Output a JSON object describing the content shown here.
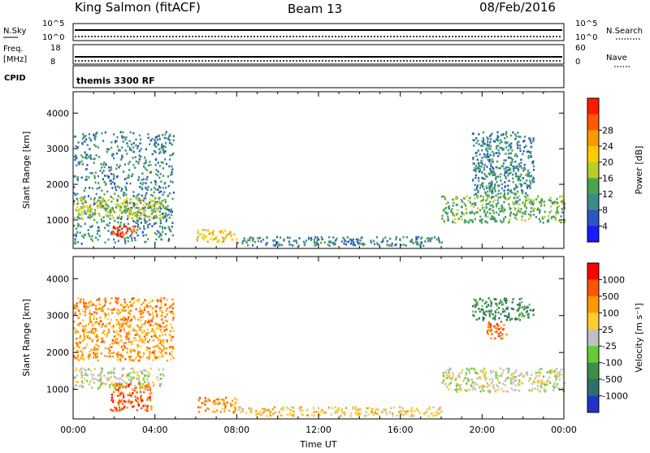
{
  "header": {
    "title": "King Salmon (fitACF)",
    "beam": "Beam 13",
    "date": "08/Feb/2016"
  },
  "strips": {
    "nsky_label": "N.Sky",
    "nsky_ticks": [
      "10^5",
      "10^0"
    ],
    "nsearch_label": "N.Search",
    "nsearch_ticks": [
      "10^5",
      "10^0"
    ],
    "freq_label_1": "Freq.",
    "freq_label_2": "[MHz]",
    "freq_ticks": [
      "18",
      "8"
    ],
    "nave_label": "Nave",
    "nave_ticks": [
      "60",
      "0"
    ],
    "cpid_label": "CPID",
    "cpid_text": "themis 3300 RF"
  },
  "chart_data": [
    {
      "type": "heatmap",
      "name": "power",
      "ylabel": "Slant Range [km]",
      "yticks": [
        1000,
        2000,
        3000,
        4000
      ],
      "ylim": [
        200,
        4600
      ],
      "xlim": [
        0,
        24
      ],
      "colorbar": {
        "label": "Power [dB]",
        "ticks": [
          "4",
          "8",
          "12",
          "16",
          "20",
          "24",
          "28"
        ],
        "colors": [
          "#1a1aff",
          "#2b55c0",
          "#3d8a8a",
          "#48a650",
          "#b8cc2a",
          "#ffcc00",
          "#ff9900",
          "#ff5a00",
          "#ff1a00"
        ]
      },
      "regions": [
        {
          "x0": 0.0,
          "x1": 4.9,
          "y0": 350,
          "y1": 3500,
          "level": 2
        },
        {
          "x0": 0.0,
          "x1": 4.5,
          "y0": 1050,
          "y1": 1650,
          "level": 4
        },
        {
          "x0": 1.8,
          "x1": 3.0,
          "y0": 550,
          "y1": 850,
          "level": 8
        },
        {
          "x0": 6.0,
          "x1": 8.0,
          "y0": 400,
          "y1": 750,
          "level": 5
        },
        {
          "x0": 8.0,
          "x1": 18.0,
          "y0": 300,
          "y1": 550,
          "level": 2
        },
        {
          "x0": 18.0,
          "x1": 24.0,
          "y0": 950,
          "y1": 1700,
          "level": 3
        },
        {
          "x0": 19.5,
          "x1": 22.5,
          "y0": 1700,
          "y1": 3500,
          "level": 2
        }
      ]
    },
    {
      "type": "heatmap",
      "name": "velocity",
      "ylabel": "Slant Range [km]",
      "yticks": [
        1000,
        2000,
        3000,
        4000
      ],
      "ylim": [
        200,
        4600
      ],
      "xlim": [
        0,
        24
      ],
      "xticks": [
        "00:00",
        "04:00",
        "08:00",
        "12:00",
        "16:00",
        "20:00",
        "00:00"
      ],
      "xlabel": "Time UT",
      "colorbar": {
        "label": "Velocity [m s⁻¹]",
        "ticks": [
          "1000",
          "500",
          "100",
          "25",
          "-25",
          "-100",
          "-500",
          "-1000"
        ],
        "colors": [
          "#2233cc",
          "#2f6f6a",
          "#3d8c4a",
          "#66cc33",
          "#c0c0c0",
          "#ffcc33",
          "#ff9900",
          "#ff5500",
          "#ff0000"
        ]
      },
      "regions": [
        {
          "x0": 0.0,
          "x1": 4.5,
          "y0": 1050,
          "y1": 1600,
          "level": 4
        },
        {
          "x0": 1.8,
          "x1": 3.8,
          "y0": 450,
          "y1": 1200,
          "level": 7
        },
        {
          "x0": 0.0,
          "x1": 4.9,
          "y0": 1800,
          "y1": 3500,
          "level": 6
        },
        {
          "x0": 6.0,
          "x1": 8.0,
          "y0": 400,
          "y1": 800,
          "level": 6
        },
        {
          "x0": 8.0,
          "x1": 18.0,
          "y0": 300,
          "y1": 550,
          "level": 5
        },
        {
          "x0": 18.0,
          "x1": 24.0,
          "y0": 950,
          "y1": 1600,
          "level": 4
        },
        {
          "x0": 20.2,
          "x1": 21.2,
          "y0": 2400,
          "y1": 2900,
          "level": 7
        },
        {
          "x0": 19.5,
          "x1": 22.5,
          "y0": 2900,
          "y1": 3500,
          "level": 2
        }
      ]
    }
  ]
}
